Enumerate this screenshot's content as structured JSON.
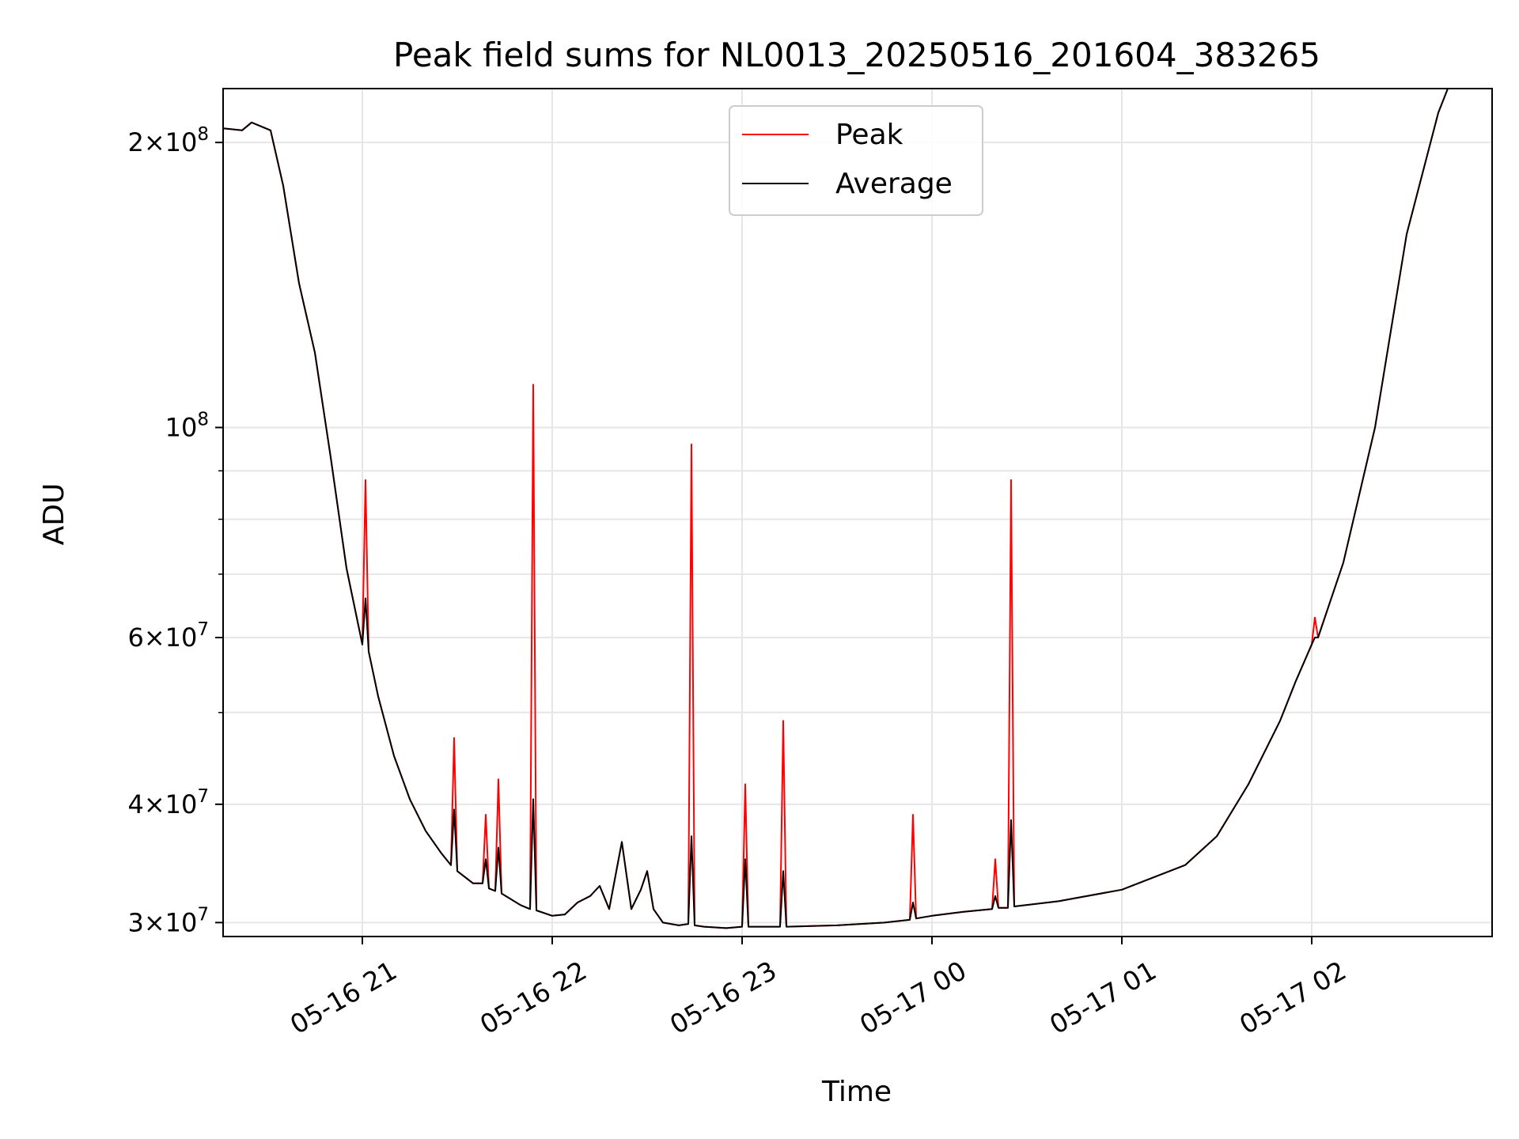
{
  "chart_data": {
    "type": "line",
    "title": "Peak field sums for NL0013_20250516_201604_383265",
    "xlabel": "Time",
    "ylabel": "ADU",
    "yscale": "log",
    "grid": true,
    "legend_placement": "top-center",
    "xlim": [
      "2025-05-16 20:16",
      "2025-05-17 02:57"
    ],
    "ylim": [
      29000000,
      228000000
    ],
    "x_ticks": [
      {
        "value": "2025-05-16 21:00",
        "label": "05-16 21"
      },
      {
        "value": "2025-05-16 22:00",
        "label": "05-16 22"
      },
      {
        "value": "2025-05-16 23:00",
        "label": "05-16 23"
      },
      {
        "value": "2025-05-17 00:00",
        "label": "05-17 00"
      },
      {
        "value": "2025-05-17 01:00",
        "label": "05-17 01"
      },
      {
        "value": "2025-05-17 02:00",
        "label": "05-17 02"
      }
    ],
    "y_ticks": [
      {
        "value": 30000000,
        "base": "3",
        "exp": "7"
      },
      {
        "value": 40000000,
        "base": "4",
        "exp": "7"
      },
      {
        "value": 60000000,
        "base": "6",
        "exp": "7"
      },
      {
        "value": 100000000,
        "base": "",
        "exp": "8"
      },
      {
        "value": 200000000,
        "base": "2",
        "exp": "8"
      }
    ],
    "y_minor_ticks": [
      50000000,
      70000000,
      80000000,
      90000000
    ],
    "series": [
      {
        "name": "Peak",
        "color": "#ff0000",
        "points": [
          [
            "2025-05-16 20:16",
            207000000
          ],
          [
            "2025-05-16 20:22",
            206000000
          ],
          [
            "2025-05-16 20:25",
            210000000
          ],
          [
            "2025-05-16 20:31",
            206000000
          ],
          [
            "2025-05-16 20:35",
            180000000
          ],
          [
            "2025-05-16 20:40",
            142000000
          ],
          [
            "2025-05-16 20:45",
            120000000
          ],
          [
            "2025-05-16 20:50",
            93000000
          ],
          [
            "2025-05-16 20:55",
            71000000
          ],
          [
            "2025-05-16 21:00",
            59000000
          ],
          [
            "2025-05-16 21:01",
            88000000
          ],
          [
            "2025-05-16 21:02",
            58000000
          ],
          [
            "2025-05-16 21:05",
            52000000
          ],
          [
            "2025-05-16 21:10",
            45000000
          ],
          [
            "2025-05-16 21:15",
            40500000
          ],
          [
            "2025-05-16 21:20",
            37500000
          ],
          [
            "2025-05-16 21:25",
            35500000
          ],
          [
            "2025-05-16 21:28",
            34500000
          ],
          [
            "2025-05-16 21:29",
            47000000
          ],
          [
            "2025-05-16 21:30",
            34000000
          ],
          [
            "2025-05-16 21:35",
            33000000
          ],
          [
            "2025-05-16 21:38",
            33000000
          ],
          [
            "2025-05-16 21:39",
            39000000
          ],
          [
            "2025-05-16 21:40",
            32600000
          ],
          [
            "2025-05-16 21:42",
            32400000
          ],
          [
            "2025-05-16 21:43",
            42500000
          ],
          [
            "2025-05-16 21:44",
            32200000
          ],
          [
            "2025-05-16 21:50",
            31300000
          ],
          [
            "2025-05-16 21:53",
            31000000
          ],
          [
            "2025-05-16 21:54",
            111000000
          ],
          [
            "2025-05-16 21:55",
            30900000
          ],
          [
            "2025-05-16 22:00",
            30500000
          ],
          [
            "2025-05-16 22:04",
            30600000
          ],
          [
            "2025-05-16 22:08",
            31500000
          ],
          [
            "2025-05-16 22:12",
            32000000
          ],
          [
            "2025-05-16 22:15",
            32800000
          ],
          [
            "2025-05-16 22:18",
            31000000
          ],
          [
            "2025-05-16 22:22",
            36500000
          ],
          [
            "2025-05-16 22:25",
            31000000
          ],
          [
            "2025-05-16 22:28",
            32500000
          ],
          [
            "2025-05-16 22:30",
            34000000
          ],
          [
            "2025-05-16 22:32",
            31000000
          ],
          [
            "2025-05-16 22:35",
            30000000
          ],
          [
            "2025-05-16 22:40",
            29800000
          ],
          [
            "2025-05-16 22:43",
            29900000
          ],
          [
            "2025-05-16 22:44",
            96000000
          ],
          [
            "2025-05-16 22:45",
            29800000
          ],
          [
            "2025-05-16 22:48",
            29700000
          ],
          [
            "2025-05-16 22:55",
            29600000
          ],
          [
            "2025-05-16 23:00",
            29700000
          ],
          [
            "2025-05-16 23:01",
            42000000
          ],
          [
            "2025-05-16 23:02",
            29700000
          ],
          [
            "2025-05-16 23:10",
            29700000
          ],
          [
            "2025-05-16 23:12",
            29700000
          ],
          [
            "2025-05-16 23:13",
            49000000
          ],
          [
            "2025-05-16 23:14",
            29700000
          ],
          [
            "2025-05-16 23:30",
            29800000
          ],
          [
            "2025-05-16 23:45",
            30000000
          ],
          [
            "2025-05-16 23:53",
            30200000
          ],
          [
            "2025-05-16 23:54",
            39000000
          ],
          [
            "2025-05-16 23:55",
            30300000
          ],
          [
            "2025-05-17 00:00",
            30500000
          ],
          [
            "2025-05-17 00:10",
            30800000
          ],
          [
            "2025-05-17 00:19",
            31000000
          ],
          [
            "2025-05-17 00:20",
            35000000
          ],
          [
            "2025-05-17 00:21",
            31100000
          ],
          [
            "2025-05-17 00:24",
            31100000
          ],
          [
            "2025-05-17 00:25",
            88000000
          ],
          [
            "2025-05-17 00:26",
            31200000
          ],
          [
            "2025-05-17 00:40",
            31600000
          ],
          [
            "2025-05-17 01:00",
            32500000
          ],
          [
            "2025-05-17 01:20",
            34500000
          ],
          [
            "2025-05-17 01:30",
            37000000
          ],
          [
            "2025-05-17 01:40",
            42000000
          ],
          [
            "2025-05-17 01:50",
            49000000
          ],
          [
            "2025-05-17 01:55",
            54000000
          ],
          [
            "2025-05-17 02:00",
            59000000
          ],
          [
            "2025-05-17 02:01",
            63000000
          ],
          [
            "2025-05-17 02:02",
            60000000
          ],
          [
            "2025-05-17 02:10",
            72000000
          ],
          [
            "2025-05-17 02:20",
            100000000
          ],
          [
            "2025-05-17 02:30",
            160000000
          ],
          [
            "2025-05-17 02:40",
            215000000
          ],
          [
            "2025-05-17 02:43",
            228000000
          ]
        ]
      },
      {
        "name": "Average",
        "color": "#000000",
        "points": [
          [
            "2025-05-16 20:16",
            207000000
          ],
          [
            "2025-05-16 20:22",
            206000000
          ],
          [
            "2025-05-16 20:25",
            210000000
          ],
          [
            "2025-05-16 20:31",
            206000000
          ],
          [
            "2025-05-16 20:35",
            180000000
          ],
          [
            "2025-05-16 20:40",
            142000000
          ],
          [
            "2025-05-16 20:45",
            120000000
          ],
          [
            "2025-05-16 20:50",
            93000000
          ],
          [
            "2025-05-16 20:55",
            71000000
          ],
          [
            "2025-05-16 21:00",
            59000000
          ],
          [
            "2025-05-16 21:01",
            66000000
          ],
          [
            "2025-05-16 21:02",
            58000000
          ],
          [
            "2025-05-16 21:05",
            52000000
          ],
          [
            "2025-05-16 21:10",
            45000000
          ],
          [
            "2025-05-16 21:15",
            40500000
          ],
          [
            "2025-05-16 21:20",
            37500000
          ],
          [
            "2025-05-16 21:25",
            35500000
          ],
          [
            "2025-05-16 21:28",
            34500000
          ],
          [
            "2025-05-16 21:29",
            39500000
          ],
          [
            "2025-05-16 21:30",
            34000000
          ],
          [
            "2025-05-16 21:35",
            33000000
          ],
          [
            "2025-05-16 21:38",
            33000000
          ],
          [
            "2025-05-16 21:39",
            35000000
          ],
          [
            "2025-05-16 21:40",
            32600000
          ],
          [
            "2025-05-16 21:42",
            32400000
          ],
          [
            "2025-05-16 21:43",
            36000000
          ],
          [
            "2025-05-16 21:44",
            32200000
          ],
          [
            "2025-05-16 21:50",
            31300000
          ],
          [
            "2025-05-16 21:53",
            31000000
          ],
          [
            "2025-05-16 21:54",
            40500000
          ],
          [
            "2025-05-16 21:55",
            30900000
          ],
          [
            "2025-05-16 22:00",
            30500000
          ],
          [
            "2025-05-16 22:04",
            30600000
          ],
          [
            "2025-05-16 22:08",
            31500000
          ],
          [
            "2025-05-16 22:12",
            32000000
          ],
          [
            "2025-05-16 22:15",
            32800000
          ],
          [
            "2025-05-16 22:18",
            31000000
          ],
          [
            "2025-05-16 22:22",
            36500000
          ],
          [
            "2025-05-16 22:25",
            31000000
          ],
          [
            "2025-05-16 22:28",
            32500000
          ],
          [
            "2025-05-16 22:30",
            34000000
          ],
          [
            "2025-05-16 22:32",
            31000000
          ],
          [
            "2025-05-16 22:35",
            30000000
          ],
          [
            "2025-05-16 22:40",
            29800000
          ],
          [
            "2025-05-16 22:43",
            29900000
          ],
          [
            "2025-05-16 22:44",
            37000000
          ],
          [
            "2025-05-16 22:45",
            29800000
          ],
          [
            "2025-05-16 22:48",
            29700000
          ],
          [
            "2025-05-16 22:55",
            29600000
          ],
          [
            "2025-05-16 23:00",
            29700000
          ],
          [
            "2025-05-16 23:01",
            35000000
          ],
          [
            "2025-05-16 23:02",
            29700000
          ],
          [
            "2025-05-16 23:10",
            29700000
          ],
          [
            "2025-05-16 23:12",
            29700000
          ],
          [
            "2025-05-16 23:13",
            34000000
          ],
          [
            "2025-05-16 23:14",
            29700000
          ],
          [
            "2025-05-16 23:30",
            29800000
          ],
          [
            "2025-05-16 23:45",
            30000000
          ],
          [
            "2025-05-16 23:53",
            30200000
          ],
          [
            "2025-05-16 23:54",
            31500000
          ],
          [
            "2025-05-16 23:55",
            30300000
          ],
          [
            "2025-05-17 00:00",
            30500000
          ],
          [
            "2025-05-17 00:10",
            30800000
          ],
          [
            "2025-05-17 00:19",
            31000000
          ],
          [
            "2025-05-17 00:20",
            32000000
          ],
          [
            "2025-05-17 00:21",
            31100000
          ],
          [
            "2025-05-17 00:24",
            31100000
          ],
          [
            "2025-05-17 00:25",
            38500000
          ],
          [
            "2025-05-17 00:26",
            31200000
          ],
          [
            "2025-05-17 00:40",
            31600000
          ],
          [
            "2025-05-17 01:00",
            32500000
          ],
          [
            "2025-05-17 01:20",
            34500000
          ],
          [
            "2025-05-17 01:30",
            37000000
          ],
          [
            "2025-05-17 01:40",
            42000000
          ],
          [
            "2025-05-17 01:50",
            49000000
          ],
          [
            "2025-05-17 01:55",
            54000000
          ],
          [
            "2025-05-17 02:00",
            59000000
          ],
          [
            "2025-05-17 02:01",
            60000000
          ],
          [
            "2025-05-17 02:02",
            60000000
          ],
          [
            "2025-05-17 02:10",
            72000000
          ],
          [
            "2025-05-17 02:20",
            100000000
          ],
          [
            "2025-05-17 02:30",
            160000000
          ],
          [
            "2025-05-17 02:40",
            215000000
          ],
          [
            "2025-05-17 02:43",
            228000000
          ]
        ]
      }
    ]
  }
}
